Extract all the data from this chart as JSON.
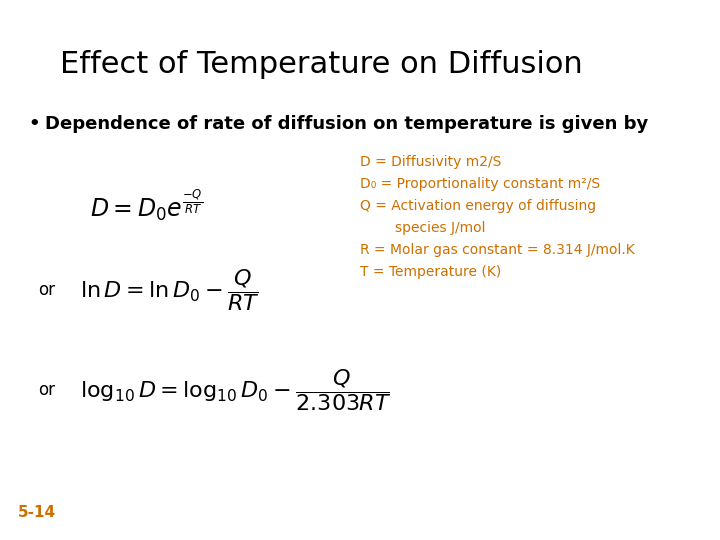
{
  "title": "Effect of Temperature on Diffusion",
  "title_fontsize": 22,
  "title_color": "#000000",
  "bullet_text": "Dependence of rate of diffusion on temperature is given by",
  "bullet_fontsize": 13,
  "bullet_color": "#000000",
  "eq_color": "#000000",
  "eq1_fontsize": 17,
  "eq2_fontsize": 16,
  "eq3_fontsize": 16,
  "or_text": "or",
  "or_fontsize": 12,
  "or_color": "#000000",
  "legend_lines": [
    "D = Diffusivity m2/S",
    "D₀ = Proportionality constant m²/S",
    "Q = Activation energy of diffusing",
    "        species J/mol",
    "R = Molar gas constant = 8.314 J/mol.K",
    "T = Temperature (K)"
  ],
  "legend_color": "#CC7000",
  "legend_fontsize": 10,
  "slide_number": "5-14",
  "slide_number_color": "#CC7000",
  "slide_number_fontsize": 11,
  "background_color": "#FFFFFF"
}
